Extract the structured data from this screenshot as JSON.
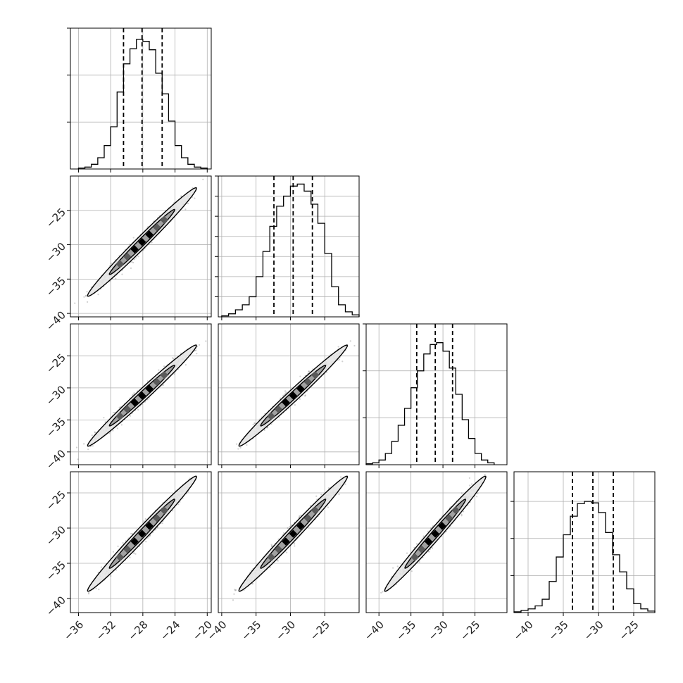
{
  "chart_data": {
    "type": "corner",
    "parameters": 4,
    "grid": true,
    "colors": {
      "line": "#000000",
      "grid": "#b0b0b0",
      "sample": "#555555",
      "fill_outer": "#e6e6e6",
      "fill_mid": "#9a9a9a",
      "fill_inner": "#5a5a5a"
    },
    "axes": [
      {
        "range": [
          -37,
          -19.5
        ],
        "ticks": [
          -36,
          -32,
          -28,
          -24,
          -20
        ],
        "tick_labels": [
          "−36",
          "−32",
          "−28",
          "−24",
          "−20"
        ]
      },
      {
        "range": [
          -40.5,
          -20
        ],
        "ticks": [
          -40,
          -35,
          -30,
          -25
        ],
        "tick_labels": [
          "−40",
          "−35",
          "−30",
          "−25"
        ]
      },
      {
        "range": [
          -42,
          -20
        ],
        "ticks": [
          -40,
          -35,
          -30,
          -25
        ],
        "tick_labels": [
          "−40",
          "−35",
          "−30",
          "−25"
        ]
      },
      {
        "range": [
          -42,
          -22
        ],
        "ticks": [
          -40,
          -35,
          -30,
          -25
        ],
        "tick_labels": [
          "−40",
          "−35",
          "−30",
          "−25"
        ]
      }
    ],
    "quantiles": [
      [
        -30.4,
        -28.1,
        -25.6
      ],
      [
        -32.4,
        -29.6,
        -26.8
      ],
      [
        -34.1,
        -31.2,
        -28.5
      ],
      [
        -33.7,
        -30.8,
        -27.9
      ]
    ],
    "correlation": 0.98,
    "diagonal_histograms": [
      {
        "bin_edges": [
          -36,
          -35.2,
          -34.4,
          -33.6,
          -32.8,
          -32,
          -31.2,
          -30.4,
          -29.6,
          -28.8,
          -28,
          -27.2,
          -26.4,
          -25.6,
          -24.8,
          -24,
          -23.2,
          -22.4,
          -21.6,
          -20.8,
          -20
        ],
        "counts": [
          1,
          2,
          5,
          12,
          25,
          45,
          82,
          112,
          128,
          138,
          136,
          127,
          102,
          80,
          51,
          25,
          12,
          5,
          2,
          1
        ],
        "ymax": 150,
        "yticks": [
          50,
          100,
          150
        ]
      },
      {
        "bin_edges": [
          -40,
          -39,
          -38,
          -37,
          -36,
          -35,
          -34,
          -33,
          -32,
          -31,
          -30,
          -29,
          -28,
          -27,
          -26,
          -25,
          -24,
          -23,
          -22,
          -21,
          -20
        ],
        "counts": [
          1,
          3,
          7,
          12,
          20,
          40,
          65,
          90,
          110,
          120,
          130,
          132,
          125,
          112,
          93,
          63,
          30,
          12,
          5,
          2
        ],
        "ymax": 140,
        "yticks": [
          20,
          40,
          60,
          80,
          100,
          120,
          140
        ]
      },
      {
        "bin_edges": [
          -42,
          -41,
          -40,
          -39,
          -38,
          -37,
          -36,
          -35,
          -34,
          -33,
          -32,
          -31,
          -30,
          -29,
          -28,
          -27,
          -26,
          -25,
          -24,
          -23,
          -22
        ],
        "counts": [
          1,
          2,
          5,
          12,
          25,
          42,
          60,
          82,
          100,
          118,
          128,
          130,
          121,
          103,
          75,
          48,
          28,
          12,
          5,
          2
        ],
        "ymax": 150,
        "yticks": [
          50,
          100,
          150
        ]
      },
      {
        "bin_edges": [
          -42,
          -41,
          -40,
          -39,
          -38,
          -37,
          -36,
          -35,
          -34,
          -33,
          -32,
          -31,
          -30,
          -29,
          -28,
          -27,
          -26,
          -25,
          -24,
          -23,
          -22
        ],
        "counts": [
          1,
          3,
          5,
          9,
          18,
          42,
          75,
          105,
          130,
          147,
          150,
          148,
          135,
          108,
          78,
          55,
          32,
          12,
          5,
          2
        ],
        "ymax": 190,
        "yticks": [
          50,
          100,
          150
        ]
      }
    ]
  }
}
